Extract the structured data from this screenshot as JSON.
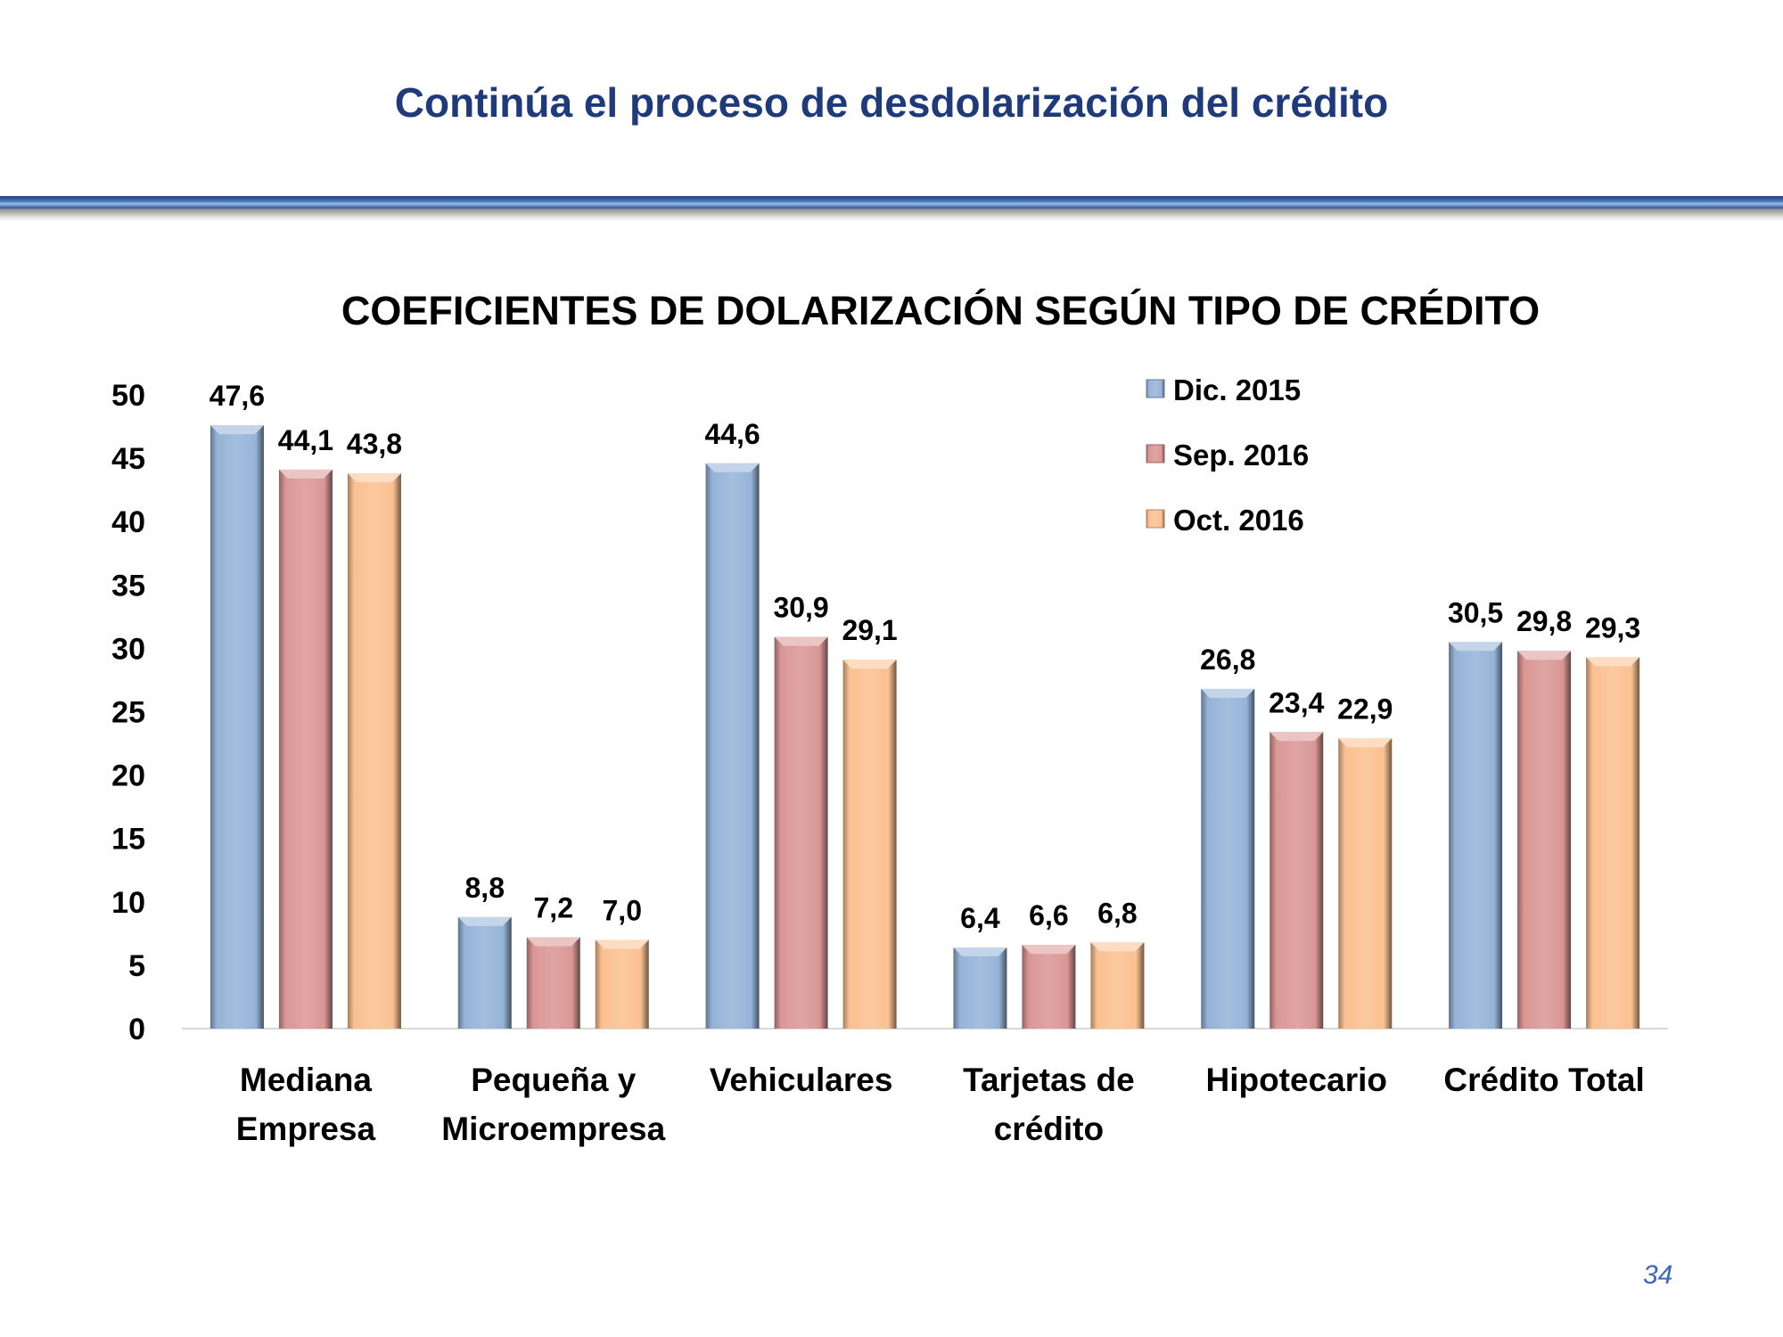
{
  "slide": {
    "title": "Continúa el proceso de desdolarización del crédito",
    "page_number": "34"
  },
  "chart_data": {
    "type": "bar",
    "title": "COEFICIENTES DE DOLARIZACIÓN SEGÚN TIPO DE CRÉDITO",
    "xlabel": "",
    "ylabel": "",
    "ylim": [
      0,
      50
    ],
    "yticks": [
      0,
      5,
      10,
      15,
      20,
      25,
      30,
      35,
      40,
      45,
      50
    ],
    "categories": [
      [
        "Mediana",
        "Empresa"
      ],
      [
        "Pequeña y",
        "Microempresa"
      ],
      [
        "Vehiculares"
      ],
      [
        "Tarjetas de",
        "crédito"
      ],
      [
        "Hipotecario"
      ],
      [
        "Crédito Total"
      ]
    ],
    "series": [
      {
        "name": "Dic. 2015",
        "color": "#95b3d7",
        "values": [
          47.6,
          8.8,
          44.6,
          6.4,
          26.8,
          30.5
        ],
        "labels": [
          "47,6",
          "8,8",
          "44,6",
          "6,4",
          "26,8",
          "30,5"
        ]
      },
      {
        "name": "Sep. 2016",
        "color": "#d99694",
        "values": [
          44.1,
          7.2,
          30.9,
          6.6,
          23.4,
          29.8
        ],
        "labels": [
          "44,1",
          "7,2",
          "30,9",
          "6,6",
          "23,4",
          "29,8"
        ]
      },
      {
        "name": "Oct. 2016",
        "color": "#fac090",
        "values": [
          43.8,
          7.0,
          29.1,
          6.8,
          22.9,
          29.3
        ],
        "labels": [
          "43,8",
          "7,0",
          "29,1",
          "6,8",
          "22,9",
          "29,3"
        ]
      }
    ],
    "legend": "top-right",
    "grid": false
  }
}
